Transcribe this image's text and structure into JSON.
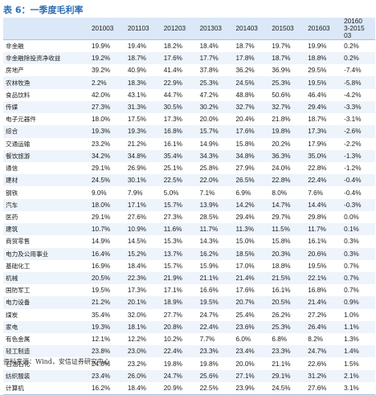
{
  "title": "表 6：一季度毛利率",
  "source": "资料来源：Wind，安信证券研究中心",
  "columns": [
    "201003",
    "201103",
    "201203",
    "201303",
    "201403",
    "201503",
    "201603",
    "20160 3-2015 03"
  ],
  "rows": [
    {
      "label": "非金融",
      "values": [
        "19.9%",
        "19.4%",
        "18.2%",
        "18.4%",
        "18.7%",
        "19.7%",
        "19.9%",
        "0.2%"
      ]
    },
    {
      "label": "非金融除投资净收益",
      "values": [
        "19.2%",
        "18.7%",
        "17.6%",
        "17.7%",
        "17.8%",
        "18.7%",
        "18.8%",
        "0.2%"
      ]
    },
    {
      "label": "房地产",
      "values": [
        "39.2%",
        "40.9%",
        "41.4%",
        "37.8%",
        "36.2%",
        "36.9%",
        "29.5%",
        "-7.4%"
      ]
    },
    {
      "label": "农林牧渔",
      "values": [
        "2.2%",
        "18.3%",
        "22.9%",
        "25.3%",
        "24.5%",
        "25.3%",
        "19.5%",
        "-5.8%"
      ]
    },
    {
      "label": "食品饮料",
      "values": [
        "42.0%",
        "43.1%",
        "44.7%",
        "47.2%",
        "48.8%",
        "50.6%",
        "46.4%",
        "-4.2%"
      ]
    },
    {
      "label": "传媒",
      "values": [
        "27.3%",
        "31.3%",
        "30.5%",
        "30.2%",
        "32.7%",
        "32.7%",
        "29.4%",
        "-3.3%"
      ]
    },
    {
      "label": "电子元器件",
      "values": [
        "18.0%",
        "17.5%",
        "17.3%",
        "20.0%",
        "20.4%",
        "21.8%",
        "18.7%",
        "-3.1%"
      ]
    },
    {
      "label": "综合",
      "values": [
        "19.3%",
        "19.3%",
        "16.8%",
        "15.7%",
        "17.6%",
        "19.8%",
        "17.3%",
        "-2.6%"
      ]
    },
    {
      "label": "交通运输",
      "values": [
        "23.2%",
        "21.2%",
        "16.1%",
        "14.9%",
        "15.8%",
        "20.2%",
        "17.9%",
        "-2.2%"
      ]
    },
    {
      "label": "餐饮旅游",
      "values": [
        "34.2%",
        "34.8%",
        "35.4%",
        "34.3%",
        "34.8%",
        "36.3%",
        "35.0%",
        "-1.3%"
      ]
    },
    {
      "label": "通信",
      "values": [
        "29.1%",
        "26.9%",
        "25.1%",
        "25.8%",
        "27.9%",
        "24.0%",
        "22.8%",
        "-1.2%"
      ]
    },
    {
      "label": "建材",
      "values": [
        "24.5%",
        "30.1%",
        "22.5%",
        "22.0%",
        "26.5%",
        "22.8%",
        "22.4%",
        "-0.4%"
      ]
    },
    {
      "label": "钢铁",
      "values": [
        "9.0%",
        "7.9%",
        "5.0%",
        "7.1%",
        "6.9%",
        "8.0%",
        "7.6%",
        "-0.4%"
      ]
    },
    {
      "label": "汽车",
      "values": [
        "18.0%",
        "17.1%",
        "15.7%",
        "13.9%",
        "14.2%",
        "14.7%",
        "14.4%",
        "-0.3%"
      ]
    },
    {
      "label": "医药",
      "values": [
        "29.1%",
        "27.6%",
        "27.3%",
        "28.5%",
        "29.4%",
        "29.7%",
        "29.8%",
        "0.0%"
      ]
    },
    {
      "label": "建筑",
      "values": [
        "10.7%",
        "10.9%",
        "11.6%",
        "11.7%",
        "11.3%",
        "11.5%",
        "11.7%",
        "0.1%"
      ]
    },
    {
      "label": "商贸零售",
      "values": [
        "14.9%",
        "14.5%",
        "15.3%",
        "14.3%",
        "15.0%",
        "15.8%",
        "16.1%",
        "0.3%"
      ]
    },
    {
      "label": "电力及公用事业",
      "values": [
        "16.4%",
        "15.2%",
        "13.7%",
        "16.2%",
        "18.5%",
        "20.3%",
        "20.6%",
        "0.3%"
      ]
    },
    {
      "label": "基础化工",
      "values": [
        "16.9%",
        "18.4%",
        "15.7%",
        "15.9%",
        "17.0%",
        "18.8%",
        "19.5%",
        "0.7%"
      ]
    },
    {
      "label": "机械",
      "values": [
        "20.5%",
        "22.3%",
        "21.9%",
        "21.1%",
        "21.4%",
        "21.5%",
        "22.1%",
        "0.7%"
      ]
    },
    {
      "label": "国防军工",
      "values": [
        "19.5%",
        "17.3%",
        "17.1%",
        "16.6%",
        "17.6%",
        "16.1%",
        "16.8%",
        "0.7%"
      ]
    },
    {
      "label": "电力设备",
      "values": [
        "21.2%",
        "20.1%",
        "18.9%",
        "19.5%",
        "20.7%",
        "20.5%",
        "21.4%",
        "0.9%"
      ]
    },
    {
      "label": "煤炭",
      "values": [
        "35.4%",
        "32.0%",
        "27.7%",
        "24.7%",
        "25.4%",
        "26.2%",
        "27.2%",
        "1.0%"
      ]
    },
    {
      "label": "家电",
      "values": [
        "19.3%",
        "18.1%",
        "20.8%",
        "22.4%",
        "23.6%",
        "25.3%",
        "26.4%",
        "1.1%"
      ]
    },
    {
      "label": "有色金属",
      "values": [
        "12.1%",
        "12.2%",
        "10.2%",
        "7.7%",
        "6.0%",
        "6.8%",
        "8.2%",
        "1.3%"
      ]
    },
    {
      "label": "轻工制造",
      "values": [
        "23.8%",
        "23.0%",
        "22.4%",
        "23.3%",
        "23.4%",
        "23.3%",
        "24.7%",
        "1.4%"
      ]
    },
    {
      "label": "石油石化",
      "values": [
        "24.8%",
        "23.2%",
        "19.8%",
        "19.8%",
        "20.0%",
        "21.1%",
        "22.6%",
        "1.5%"
      ]
    },
    {
      "label": "纺织服装",
      "values": [
        "23.4%",
        "26.0%",
        "24.7%",
        "25.6%",
        "27.1%",
        "29.1%",
        "31.2%",
        "2.1%"
      ]
    },
    {
      "label": "计算机",
      "values": [
        "16.2%",
        "18.4%",
        "20.9%",
        "22.5%",
        "23.9%",
        "24.5%",
        "27.6%",
        "3.1%"
      ]
    }
  ]
}
